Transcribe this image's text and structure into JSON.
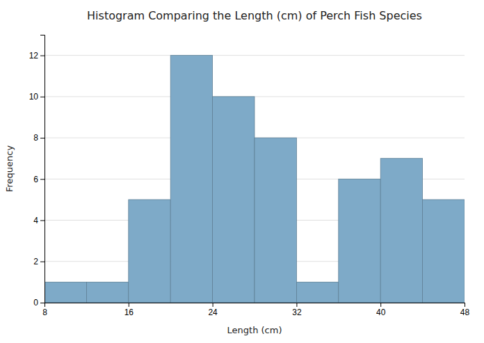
{
  "chart_data": {
    "type": "histogram",
    "title": "Histogram Comparing the Length (cm) of Perch Fish Species",
    "xlabel": "Length (cm)",
    "ylabel": "Frequency",
    "bins": [
      8,
      12,
      16,
      20,
      24,
      28,
      32,
      36,
      40,
      44,
      48
    ],
    "values": [
      1,
      1,
      5,
      12,
      10,
      8,
      1,
      6,
      7,
      5
    ],
    "color": "#7eaac8",
    "xlim": [
      8,
      48
    ],
    "ylim": [
      0,
      13
    ],
    "xticks": [
      8,
      16,
      24,
      32,
      40,
      48
    ],
    "yticks": [
      0,
      2,
      4,
      6,
      8,
      10,
      12
    ],
    "grid": true
  }
}
